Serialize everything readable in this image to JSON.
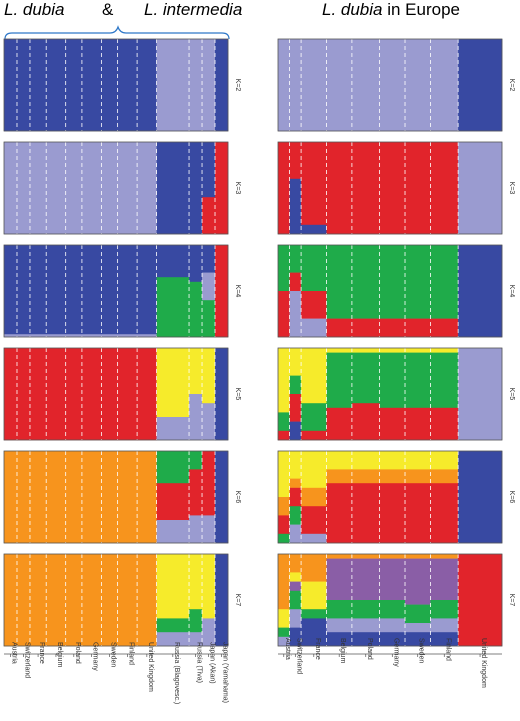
{
  "titles": {
    "left_species_1": "L. dubia",
    "ampersand": "&",
    "left_species_2": "L. intermedia",
    "right_species": "L. dubia",
    "right_suffix": " in Europe"
  },
  "colors": {
    "dark_blue": "#3849a2",
    "light_purple": "#9a9bd0",
    "red": "#e1242b",
    "green": "#1fab4a",
    "yellow": "#f6eb2b",
    "orange": "#f7941d",
    "violet": "#8a5ea6"
  },
  "chart_data": [
    {
      "type": "bar",
      "title": "L. dubia & L. intermedia",
      "stacked": true,
      "ylim": [
        0,
        1
      ],
      "populations": [
        "Austria",
        "Switzerland",
        "France",
        "Belgium",
        "Poland",
        "Germany",
        "Sweden",
        "Finland",
        "United Kingdom",
        "Russia (Blagovesc.)",
        "Russia (Tiva)",
        "Japan (Akan)",
        "Japan (Yamahama)"
      ],
      "panels": [
        {
          "label": "K=2",
          "series": [
            {
              "color": "dark_blue",
              "values": [
                1,
                1,
                1,
                1,
                1,
                1,
                1,
                1,
                1,
                0,
                0,
                0,
                1
              ]
            },
            {
              "color": "light_purple",
              "values": [
                0,
                0,
                0,
                0,
                0,
                0,
                0,
                0,
                0,
                1,
                1,
                1,
                0
              ]
            }
          ]
        },
        {
          "label": "K=3",
          "series": [
            {
              "color": "light_purple",
              "values": [
                1,
                1,
                1,
                1,
                1,
                1,
                1,
                1,
                1,
                0,
                0,
                0,
                0
              ]
            },
            {
              "color": "dark_blue",
              "values": [
                0,
                0,
                0,
                0,
                0,
                0,
                0,
                0,
                0,
                1,
                1,
                0.6,
                0
              ]
            },
            {
              "color": "red",
              "values": [
                0,
                0,
                0,
                0,
                0,
                0,
                0,
                0,
                0,
                0,
                0,
                0.4,
                1
              ]
            }
          ]
        },
        {
          "label": "K=4",
          "series": [
            {
              "color": "dark_blue",
              "values": [
                0.97,
                0.97,
                0.97,
                0.97,
                0.97,
                0.97,
                0.97,
                0.97,
                0.97,
                0.35,
                0.4,
                0.3,
                0
              ]
            },
            {
              "color": "light_purple",
              "values": [
                0.03,
                0.03,
                0.03,
                0.03,
                0.03,
                0.03,
                0.03,
                0.03,
                0.03,
                0,
                0,
                0.3,
                0
              ]
            },
            {
              "color": "green",
              "values": [
                0,
                0,
                0,
                0,
                0,
                0,
                0,
                0,
                0,
                0.65,
                0.6,
                0.4,
                0
              ]
            },
            {
              "color": "red",
              "values": [
                0,
                0,
                0,
                0,
                0,
                0,
                0,
                0,
                0,
                0,
                0,
                0,
                1
              ]
            }
          ]
        },
        {
          "label": "K=5",
          "series": [
            {
              "color": "red",
              "values": [
                1,
                1,
                1,
                1,
                1,
                1,
                1,
                1,
                1,
                0,
                0,
                0,
                0
              ]
            },
            {
              "color": "yellow",
              "values": [
                0,
                0,
                0,
                0,
                0,
                0,
                0,
                0,
                0,
                0.75,
                0.5,
                0.6,
                0
              ]
            },
            {
              "color": "light_purple",
              "values": [
                0,
                0,
                0,
                0,
                0,
                0,
                0,
                0,
                0,
                0.25,
                0.5,
                0.4,
                0
              ]
            },
            {
              "color": "dark_blue",
              "values": [
                0,
                0,
                0,
                0,
                0,
                0,
                0,
                0,
                0,
                0,
                0,
                0,
                1
              ]
            }
          ]
        },
        {
          "label": "K=6",
          "series": [
            {
              "color": "orange",
              "values": [
                1,
                1,
                1,
                1,
                1,
                1,
                1,
                1,
                1,
                0,
                0,
                0,
                0
              ]
            },
            {
              "color": "green",
              "values": [
                0,
                0,
                0,
                0,
                0,
                0,
                0,
                0,
                0,
                0.35,
                0.2,
                0,
                0
              ]
            },
            {
              "color": "red",
              "values": [
                0,
                0,
                0,
                0,
                0,
                0,
                0,
                0,
                0,
                0.4,
                0.5,
                0.7,
                0
              ]
            },
            {
              "color": "light_purple",
              "values": [
                0,
                0,
                0,
                0,
                0,
                0,
                0,
                0,
                0,
                0.25,
                0.3,
                0.3,
                0
              ]
            },
            {
              "color": "dark_blue",
              "values": [
                0,
                0,
                0,
                0,
                0,
                0,
                0,
                0,
                0,
                0,
                0,
                0,
                1
              ]
            }
          ]
        },
        {
          "label": "K=7",
          "series": [
            {
              "color": "orange",
              "values": [
                1,
                1,
                1,
                1,
                1,
                1,
                1,
                1,
                1,
                0,
                0,
                0,
                0
              ]
            },
            {
              "color": "yellow",
              "values": [
                0,
                0,
                0,
                0,
                0,
                0,
                0,
                0,
                0,
                0.7,
                0.6,
                0.7,
                0
              ]
            },
            {
              "color": "green",
              "values": [
                0,
                0,
                0,
                0,
                0,
                0,
                0,
                0,
                0,
                0.15,
                0.25,
                0,
                0
              ]
            },
            {
              "color": "light_purple",
              "values": [
                0,
                0,
                0,
                0,
                0,
                0,
                0,
                0,
                0,
                0.15,
                0.15,
                0.3,
                0
              ]
            },
            {
              "color": "dark_blue",
              "values": [
                0,
                0,
                0,
                0,
                0,
                0,
                0,
                0,
                0,
                0,
                0,
                0,
                1
              ]
            }
          ]
        }
      ]
    },
    {
      "type": "bar",
      "title": "L. dubia in Europe",
      "stacked": true,
      "ylim": [
        0,
        1
      ],
      "populations": [
        "Austria",
        "Switzerland",
        "France",
        "Belgium",
        "Poland",
        "Germany",
        "Sweden",
        "Finland",
        "United Kingdom"
      ],
      "panels": [
        {
          "label": "K=2",
          "series": [
            {
              "color": "light_purple",
              "values": [
                1,
                1,
                1,
                1,
                1,
                1,
                1,
                1,
                0
              ]
            },
            {
              "color": "dark_blue",
              "values": [
                0,
                0,
                0,
                0,
                0,
                0,
                0,
                0,
                1
              ]
            }
          ]
        },
        {
          "label": "K=3",
          "series": [
            {
              "color": "red",
              "values": [
                1,
                0.4,
                0.9,
                1,
                1,
                1,
                1,
                1,
                0
              ]
            },
            {
              "color": "dark_blue",
              "values": [
                0,
                0.6,
                0.1,
                0,
                0,
                0,
                0,
                0,
                0
              ]
            },
            {
              "color": "light_purple",
              "values": [
                0,
                0,
                0,
                0,
                0,
                0,
                0,
                0,
                1
              ]
            }
          ]
        },
        {
          "label": "K=4",
          "series": [
            {
              "color": "green",
              "values": [
                0.5,
                0.3,
                0.5,
                0.8,
                0.8,
                0.8,
                0.8,
                0.8,
                0
              ]
            },
            {
              "color": "red",
              "values": [
                0.5,
                0.2,
                0.3,
                0.2,
                0.2,
                0.2,
                0.2,
                0.2,
                0
              ]
            },
            {
              "color": "light_purple",
              "values": [
                0,
                0.5,
                0.2,
                0,
                0,
                0,
                0,
                0,
                0
              ]
            },
            {
              "color": "dark_blue",
              "values": [
                0,
                0,
                0,
                0,
                0,
                0,
                0,
                0,
                1
              ]
            }
          ]
        },
        {
          "label": "K=5",
          "series": [
            {
              "color": "yellow",
              "values": [
                0.7,
                0.3,
                0.6,
                0.05,
                0.05,
                0.05,
                0.05,
                0.05,
                0
              ]
            },
            {
              "color": "green",
              "values": [
                0.2,
                0.2,
                0.3,
                0.6,
                0.55,
                0.6,
                0.6,
                0.6,
                0
              ]
            },
            {
              "color": "red",
              "values": [
                0.1,
                0.3,
                0.1,
                0.35,
                0.4,
                0.35,
                0.35,
                0.35,
                0
              ]
            },
            {
              "color": "dark_blue",
              "values": [
                0,
                0.2,
                0,
                0,
                0,
                0,
                0,
                0,
                0
              ]
            },
            {
              "color": "light_purple",
              "values": [
                0,
                0,
                0,
                0,
                0,
                0,
                0,
                0,
                1
              ]
            }
          ]
        },
        {
          "label": "K=6",
          "series": [
            {
              "color": "yellow",
              "values": [
                0.5,
                0.3,
                0.4,
                0.2,
                0.2,
                0.2,
                0.2,
                0.2,
                0
              ]
            },
            {
              "color": "orange",
              "values": [
                0.2,
                0.1,
                0.2,
                0.15,
                0.15,
                0.15,
                0.15,
                0.15,
                0
              ]
            },
            {
              "color": "red",
              "values": [
                0.2,
                0.2,
                0.3,
                0.65,
                0.65,
                0.65,
                0.65,
                0.65,
                0
              ]
            },
            {
              "color": "green",
              "values": [
                0.1,
                0.2,
                0,
                0,
                0,
                0,
                0,
                0,
                0
              ]
            },
            {
              "color": "light_purple",
              "values": [
                0,
                0.2,
                0.1,
                0,
                0,
                0,
                0,
                0,
                0
              ]
            },
            {
              "color": "dark_blue",
              "values": [
                0,
                0,
                0,
                0,
                0,
                0,
                0,
                0,
                1
              ]
            }
          ]
        },
        {
          "label": "K=7",
          "series": [
            {
              "color": "orange",
              "values": [
                0.6,
                0.2,
                0.3,
                0.05,
                0.05,
                0.05,
                0.05,
                0.05,
                0
              ]
            },
            {
              "color": "yellow",
              "values": [
                0.2,
                0.1,
                0.3,
                0,
                0,
                0,
                0,
                0,
                0
              ]
            },
            {
              "color": "violet",
              "values": [
                0,
                0.1,
                0,
                0.45,
                0.45,
                0.45,
                0.5,
                0.45,
                0
              ]
            },
            {
              "color": "green",
              "values": [
                0.1,
                0.2,
                0.1,
                0.2,
                0.2,
                0.2,
                0.2,
                0.2,
                0
              ]
            },
            {
              "color": "light_purple",
              "values": [
                0.1,
                0.2,
                0,
                0.15,
                0.15,
                0.15,
                0.1,
                0.15,
                0
              ]
            },
            {
              "color": "dark_blue",
              "values": [
                0,
                0.2,
                0.3,
                0.15,
                0.15,
                0.15,
                0.15,
                0.15,
                0
              ]
            },
            {
              "color": "red",
              "values": [
                0,
                0,
                0,
                0,
                0,
                0,
                0,
                0,
                1
              ]
            }
          ]
        }
      ]
    }
  ]
}
